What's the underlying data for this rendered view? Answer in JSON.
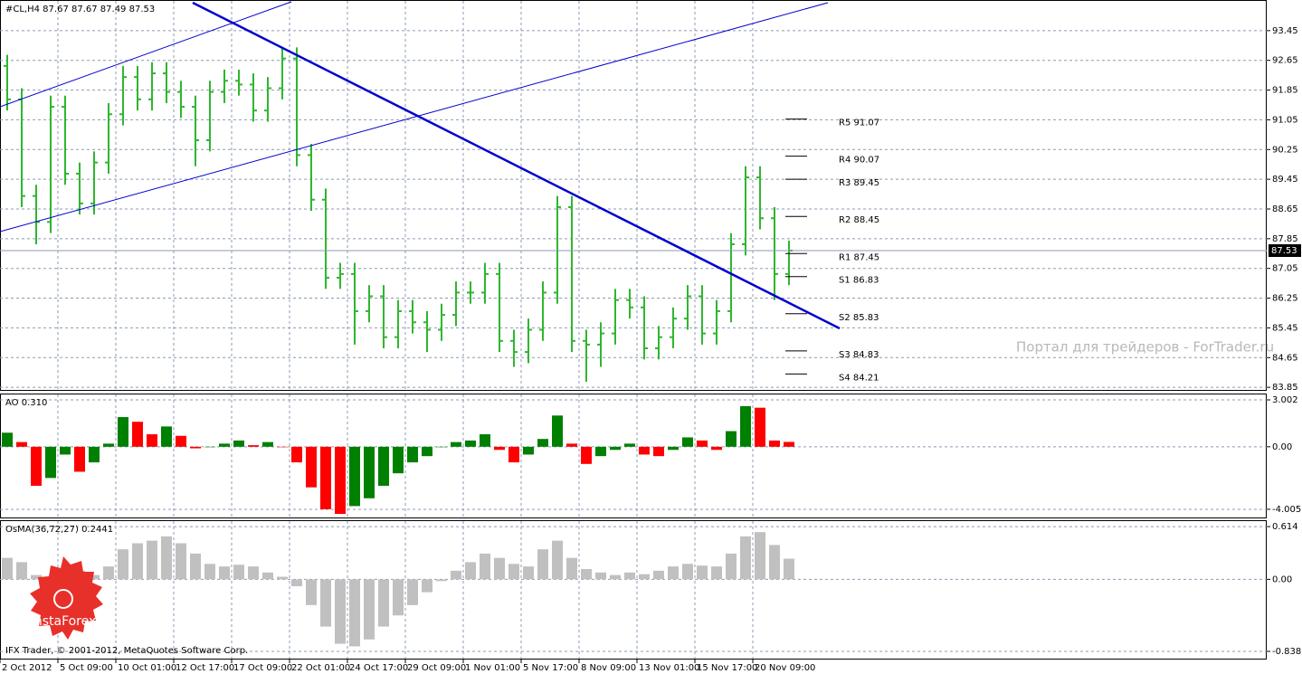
{
  "chart_data": [
    {
      "type": "candlestick",
      "title": "#CL,H4  87.67 87.67 87.49 87.53",
      "color": "#2fb62f",
      "categories": [
        "2 Oct 2012",
        null,
        null,
        null,
        "5 Oct 09:00",
        null,
        null,
        null,
        "10 Oct 01:00",
        null,
        null,
        null,
        "12 Oct 17:00",
        null,
        null,
        null,
        "17 Oct 09:00",
        null,
        null,
        null,
        "22 Oct 01:00",
        null,
        null,
        null,
        "24 Oct 17:00",
        null,
        null,
        null,
        "29 Oct 09:00",
        null,
        null,
        null,
        "1 Nov 01:00",
        null,
        null,
        null,
        "5 Nov 17:00",
        null,
        null,
        null,
        "8 Nov 09:00",
        null,
        null,
        null,
        "13 Nov 01:00",
        null,
        null,
        null,
        "15 Nov 17:00",
        null,
        null,
        null,
        "20 Nov 09:00",
        null,
        null
      ],
      "open": [
        92.5,
        91.6,
        89.0,
        88.3,
        91.4,
        89.6,
        88.8,
        89.9,
        91.2,
        92.2,
        91.6,
        92.3,
        91.8,
        91.4,
        90.5,
        91.8,
        92.1,
        92.0,
        91.3,
        91.9,
        92.7,
        90.1,
        88.9,
        86.8,
        86.9,
        85.9,
        86.3,
        85.2,
        85.9,
        85.6,
        85.4,
        85.8,
        86.4,
        86.4,
        86.9,
        85.1,
        84.8,
        85.4,
        86.4,
        88.7,
        85.1,
        85.0,
        85.3,
        86.2,
        86.0,
        84.9,
        85.2,
        85.7,
        86.3,
        85.3,
        85.9,
        87.7,
        89.5,
        88.4,
        86.9
      ],
      "high": [
        92.8,
        91.9,
        89.3,
        91.7,
        91.7,
        89.9,
        90.2,
        91.5,
        92.5,
        92.5,
        92.6,
        92.6,
        92.1,
        91.7,
        92.1,
        92.4,
        92.4,
        92.3,
        92.2,
        93.0,
        93.0,
        90.4,
        89.2,
        87.2,
        87.2,
        86.6,
        86.6,
        86.2,
        86.2,
        85.9,
        86.1,
        86.7,
        86.7,
        87.2,
        87.2,
        85.4,
        85.7,
        86.7,
        89.0,
        89.0,
        85.4,
        85.6,
        86.5,
        86.5,
        86.3,
        85.5,
        86.0,
        86.6,
        86.6,
        86.2,
        88.0,
        89.8,
        89.8,
        88.7,
        87.8
      ],
      "low": [
        91.3,
        88.7,
        87.7,
        88.0,
        89.3,
        88.5,
        88.5,
        89.6,
        90.9,
        91.3,
        91.3,
        91.5,
        91.1,
        89.8,
        90.2,
        91.5,
        91.7,
        91.0,
        91.0,
        91.6,
        89.8,
        88.6,
        86.5,
        86.5,
        85.0,
        85.6,
        84.9,
        84.9,
        85.3,
        84.8,
        85.1,
        85.5,
        86.1,
        86.1,
        84.8,
        84.4,
        84.5,
        85.1,
        86.1,
        84.8,
        84.0,
        84.4,
        85.0,
        85.7,
        84.6,
        84.6,
        84.9,
        85.4,
        85.0,
        85.0,
        85.6,
        87.4,
        88.1,
        86.2,
        86.6
      ],
      "close": [
        91.6,
        89.0,
        88.3,
        91.4,
        89.6,
        88.8,
        89.9,
        91.2,
        92.2,
        91.6,
        92.3,
        91.8,
        91.4,
        90.5,
        91.8,
        92.1,
        92.0,
        91.3,
        91.9,
        92.7,
        90.1,
        88.9,
        86.8,
        86.9,
        85.9,
        86.3,
        85.2,
        85.9,
        85.6,
        85.4,
        85.8,
        86.4,
        86.4,
        86.9,
        85.1,
        84.8,
        85.4,
        86.4,
        88.7,
        85.1,
        85.0,
        85.3,
        86.2,
        86.0,
        84.9,
        85.2,
        85.7,
        86.3,
        85.3,
        85.9,
        87.7,
        89.5,
        88.4,
        86.9,
        87.53
      ],
      "ylim": [
        83.78,
        94.25
      ],
      "yticks": [
        93.45,
        92.65,
        91.85,
        91.05,
        90.25,
        89.45,
        88.65,
        87.85,
        87.05,
        86.25,
        85.45,
        84.65,
        83.85
      ],
      "last_price": 87.53,
      "levels": [
        {
          "label": "R5 91.07",
          "value": 91.07
        },
        {
          "label": "R4 90.07",
          "value": 90.07
        },
        {
          "label": "R3 89.45",
          "value": 89.45
        },
        {
          "label": "R2 88.45",
          "value": 88.45
        },
        {
          "label": "R1 87.45",
          "value": 87.45
        },
        {
          "label": "S1 86.83",
          "value": 86.83
        },
        {
          "label": "S2 85.83",
          "value": 85.83
        },
        {
          "label": "S3 84.83",
          "value": 84.83
        },
        {
          "label": "S4 84.21",
          "value": 84.21
        }
      ],
      "grid": true
    },
    {
      "type": "bar",
      "title": "AO 0.310",
      "up_color": "#008000",
      "down_color": "#ff0000",
      "values": [
        0.9,
        0.3,
        -2.5,
        -2.0,
        -0.5,
        -1.6,
        -1.0,
        0.2,
        1.9,
        1.6,
        0.8,
        1.3,
        0.7,
        -0.1,
        0.0,
        0.2,
        0.4,
        0.1,
        0.3,
        0.0,
        -1.0,
        -2.6,
        -4.0,
        -4.3,
        -3.8,
        -3.3,
        -2.5,
        -1.7,
        -1.0,
        -0.6,
        0.0,
        0.3,
        0.4,
        0.8,
        -0.2,
        -1.0,
        -0.5,
        0.5,
        2.0,
        0.2,
        -1.1,
        -0.6,
        -0.2,
        0.2,
        -0.5,
        -0.6,
        -0.2,
        0.6,
        0.4,
        -0.2,
        1.0,
        2.6,
        2.5,
        0.4,
        0.31
      ],
      "ylim": [
        -4.53,
        3.35
      ],
      "yticks": [
        3.002,
        {
          "value": 0,
          "label": "0.00"
        },
        -4.005
      ],
      "grid": true
    },
    {
      "type": "bar",
      "title": "OsMA(36,72,27) 0.2441",
      "color": "#c0c0c0",
      "values": [
        0.25,
        0.2,
        0.05,
        0.0,
        0.05,
        0.1,
        0.05,
        0.15,
        0.35,
        0.42,
        0.45,
        0.5,
        0.42,
        0.3,
        0.18,
        0.15,
        0.17,
        0.15,
        0.08,
        0.03,
        -0.08,
        -0.3,
        -0.55,
        -0.75,
        -0.78,
        -0.7,
        -0.55,
        -0.42,
        -0.3,
        -0.15,
        -0.02,
        0.1,
        0.2,
        0.3,
        0.25,
        0.18,
        0.15,
        0.35,
        0.45,
        0.25,
        0.12,
        0.08,
        0.05,
        0.08,
        0.06,
        0.1,
        0.15,
        0.18,
        0.16,
        0.15,
        0.3,
        0.5,
        0.55,
        0.4,
        0.24
      ],
      "ylim": [
        -0.923,
        0.678
      ],
      "yticks": [
        0.614,
        {
          "value": 0,
          "label": "0.00"
        },
        -0.8387
      ],
      "grid": true
    }
  ],
  "watermark": "Портал для трейдеров - ForTrader.ru",
  "footer": "IFX Trader, © 2001-2012, MetaQuotes Software Corp.",
  "logo": "InstaForex"
}
